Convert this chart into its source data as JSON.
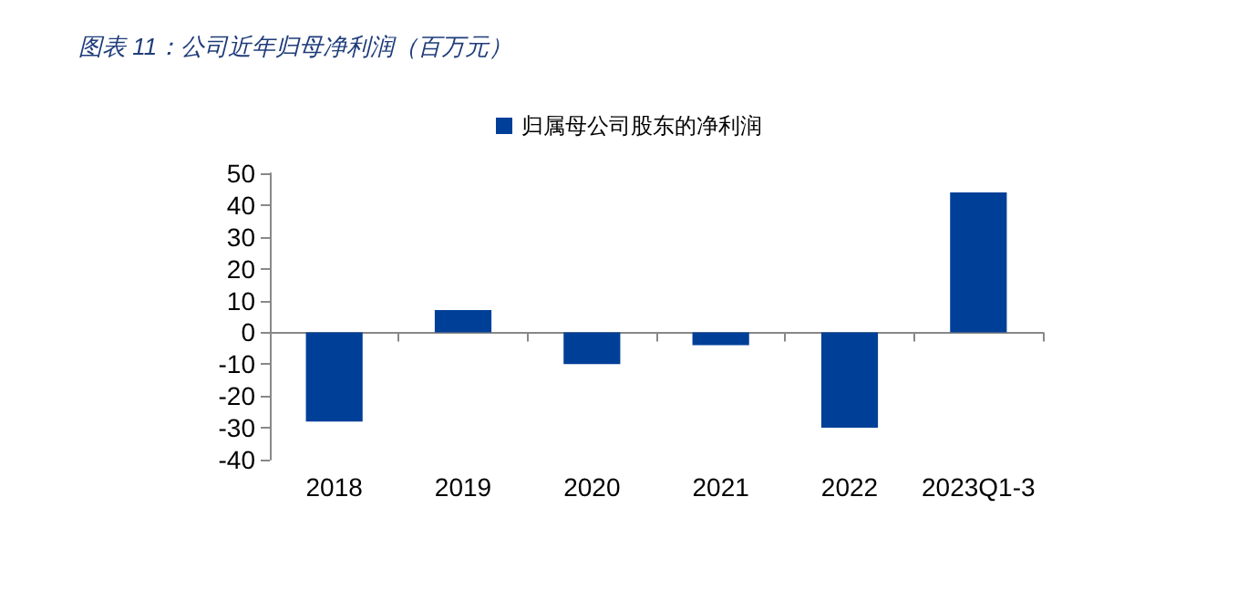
{
  "chart_data": {
    "type": "bar",
    "title": "图表 11：公司近年归母净利润（百万元）",
    "categories": [
      "2018",
      "2019",
      "2020",
      "2021",
      "2022",
      "2023Q1-3"
    ],
    "series": [
      {
        "name": "归属母公司股东的净利润",
        "color": "#003f98",
        "values": [
          -28,
          7,
          -10,
          -4,
          -30,
          44
        ]
      }
    ],
    "ylim": [
      -40,
      50
    ],
    "yticks": [
      -40,
      -30,
      -20,
      -10,
      0,
      10,
      20,
      30,
      40,
      50
    ],
    "legend": "top"
  }
}
